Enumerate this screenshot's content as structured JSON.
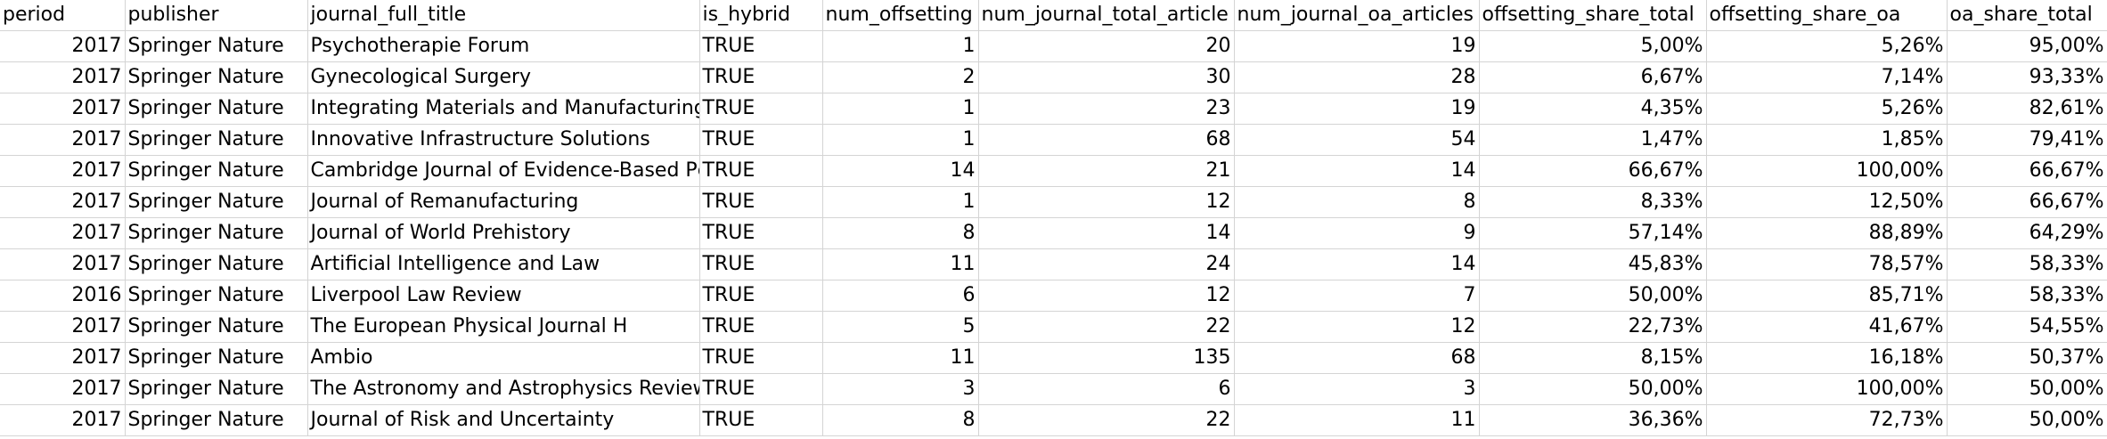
{
  "sheet": {
    "headers": [
      "period",
      "publisher",
      "journal_full_title",
      "is_hybrid",
      "num_offsetting",
      "num_journal_total_article",
      "num_journal_oa_articles",
      "offsetting_share_total",
      "offsetting_share_oa",
      "oa_share_total"
    ],
    "rows": [
      [
        "2017",
        "Springer Nature",
        "Psychotherapie Forum",
        "TRUE",
        "1",
        "20",
        "19",
        "5,00%",
        "5,26%",
        "95,00%"
      ],
      [
        "2017",
        "Springer Nature",
        "Gynecological Surgery",
        "TRUE",
        "2",
        "30",
        "28",
        "6,67%",
        "7,14%",
        "93,33%"
      ],
      [
        "2017",
        "Springer Nature",
        "Integrating Materials and Manufacturing",
        "TRUE",
        "1",
        "23",
        "19",
        "4,35%",
        "5,26%",
        "82,61%"
      ],
      [
        "2017",
        "Springer Nature",
        "Innovative Infrastructure Solutions",
        "TRUE",
        "1",
        "68",
        "54",
        "1,47%",
        "1,85%",
        "79,41%"
      ],
      [
        "2017",
        "Springer Nature",
        "Cambridge Journal of Evidence-Based Pc",
        "TRUE",
        "14",
        "21",
        "14",
        "66,67%",
        "100,00%",
        "66,67%"
      ],
      [
        "2017",
        "Springer Nature",
        "Journal of Remanufacturing",
        "TRUE",
        "1",
        "12",
        "8",
        "8,33%",
        "12,50%",
        "66,67%"
      ],
      [
        "2017",
        "Springer Nature",
        "Journal of World Prehistory",
        "TRUE",
        "8",
        "14",
        "9",
        "57,14%",
        "88,89%",
        "64,29%"
      ],
      [
        "2017",
        "Springer Nature",
        "Artificial Intelligence and Law",
        "TRUE",
        "11",
        "24",
        "14",
        "45,83%",
        "78,57%",
        "58,33%"
      ],
      [
        "2016",
        "Springer Nature",
        "Liverpool Law Review",
        "TRUE",
        "6",
        "12",
        "7",
        "50,00%",
        "85,71%",
        "58,33%"
      ],
      [
        "2017",
        "Springer Nature",
        "The European Physical Journal H",
        "TRUE",
        "5",
        "22",
        "12",
        "22,73%",
        "41,67%",
        "54,55%"
      ],
      [
        "2017",
        "Springer Nature",
        "Ambio",
        "TRUE",
        "11",
        "135",
        "68",
        "8,15%",
        "16,18%",
        "50,37%"
      ],
      [
        "2017",
        "Springer Nature",
        "The Astronomy and Astrophysics Review",
        "TRUE",
        "3",
        "6",
        "3",
        "50,00%",
        "100,00%",
        "50,00%"
      ],
      [
        "2017",
        "Springer Nature",
        "Journal of Risk and Uncertainty",
        "TRUE",
        "8",
        "22",
        "11",
        "36,36%",
        "72,73%",
        "50,00%"
      ]
    ]
  }
}
